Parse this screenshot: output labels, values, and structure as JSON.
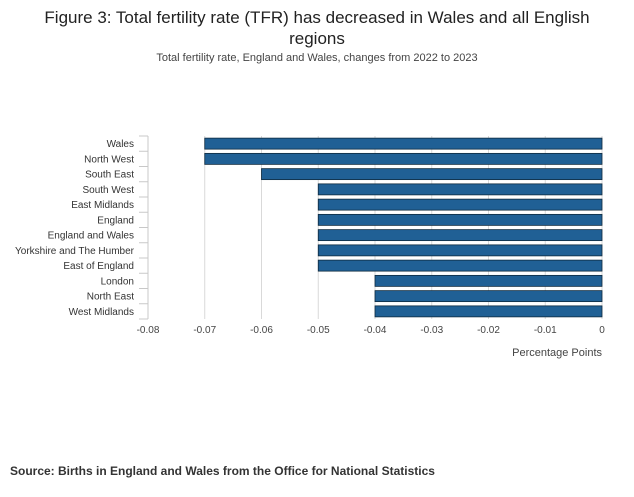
{
  "header": {
    "title": "Figure 3: Total fertility rate (TFR) has decreased in Wales and all English regions",
    "subtitle": "Total fertility rate, England and Wales, changes from 2022 to 2023"
  },
  "footer": {
    "source": "Source: Births in England and Wales from the Office for National Statistics"
  },
  "chart_data": {
    "type": "bar",
    "orientation": "horizontal",
    "title": "Figure 3: Total fertility rate (TFR) has decreased in Wales and all English regions",
    "subtitle": "Total fertility rate, England and Wales, changes from 2022 to 2023",
    "xlabel": "Percentage Points",
    "ylabel": "",
    "categories": [
      "Wales",
      "North West",
      "South East",
      "South West",
      "East Midlands",
      "England",
      "England and Wales",
      "Yorkshire and The Humber",
      "East of England",
      "London",
      "North East",
      "West Midlands"
    ],
    "values": [
      -0.07,
      -0.07,
      -0.06,
      -0.05,
      -0.05,
      -0.05,
      -0.05,
      -0.05,
      -0.05,
      -0.04,
      -0.04,
      -0.04
    ],
    "xlim": [
      -0.08,
      0
    ],
    "xticks": [
      -0.08,
      -0.07,
      -0.06,
      -0.05,
      -0.04,
      -0.03,
      -0.02,
      -0.01,
      0
    ],
    "xtick_labels": [
      "-0.08",
      "-0.07",
      "-0.06",
      "-0.05",
      "-0.04",
      "-0.03",
      "-0.02",
      "-0.01",
      "0"
    ],
    "grid": true,
    "legend": "none",
    "bar_color": "#206095",
    "bar_edge_color": "#0f2a3f",
    "grid_color": "#d9d9d9"
  }
}
